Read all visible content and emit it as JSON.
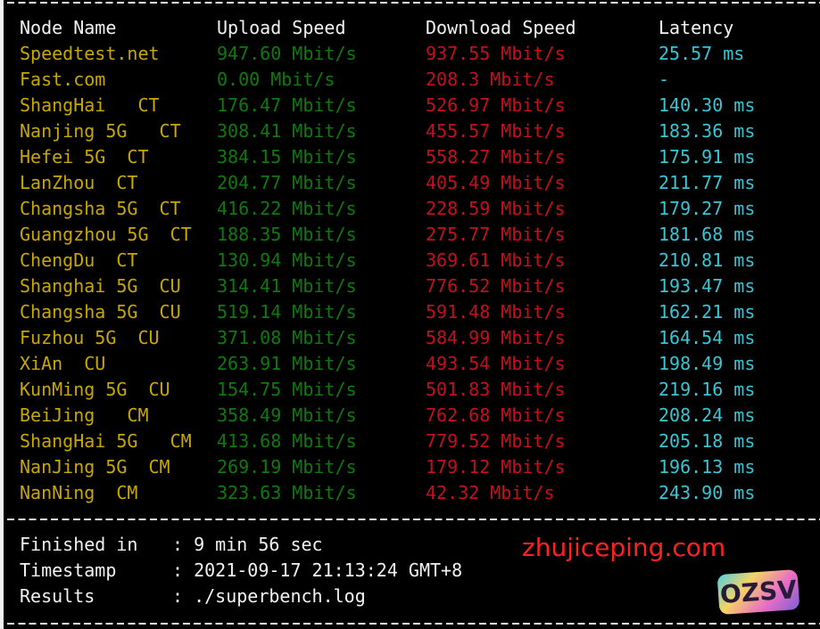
{
  "headers": {
    "node": "Node Name",
    "upload": "Upload Speed",
    "download": "Download Speed",
    "latency": "Latency"
  },
  "rows": [
    {
      "node": "Speedtest.net",
      "upload": "947.60 Mbit/s",
      "download": "937.55 Mbit/s",
      "latency": "25.57 ms"
    },
    {
      "node": "Fast.com",
      "upload": "0.00 Mbit/s",
      "download": "208.3 Mbit/s",
      "latency": "-"
    },
    {
      "node": "ShangHai   CT",
      "upload": "176.47 Mbit/s",
      "download": "526.97 Mbit/s",
      "latency": "140.30 ms"
    },
    {
      "node": "Nanjing 5G   CT",
      "upload": "308.41 Mbit/s",
      "download": "455.57 Mbit/s",
      "latency": "183.36 ms"
    },
    {
      "node": "Hefei 5G  CT",
      "upload": "384.15 Mbit/s",
      "download": "558.27 Mbit/s",
      "latency": "175.91 ms"
    },
    {
      "node": "LanZhou  CT",
      "upload": "204.77 Mbit/s",
      "download": "405.49 Mbit/s",
      "latency": "211.77 ms"
    },
    {
      "node": "Changsha 5G  CT",
      "upload": "416.22 Mbit/s",
      "download": "228.59 Mbit/s",
      "latency": "179.27 ms"
    },
    {
      "node": "Guangzhou 5G  CT",
      "upload": "188.35 Mbit/s",
      "download": "275.77 Mbit/s",
      "latency": "181.68 ms"
    },
    {
      "node": "ChengDu  CT",
      "upload": "130.94 Mbit/s",
      "download": "369.61 Mbit/s",
      "latency": "210.81 ms"
    },
    {
      "node": "Shanghai 5G  CU",
      "upload": "314.41 Mbit/s",
      "download": "776.52 Mbit/s",
      "latency": "193.47 ms"
    },
    {
      "node": "Changsha 5G  CU",
      "upload": "519.14 Mbit/s",
      "download": "591.48 Mbit/s",
      "latency": "162.21 ms"
    },
    {
      "node": "Fuzhou 5G  CU",
      "upload": "371.08 Mbit/s",
      "download": "584.99 Mbit/s",
      "latency": "164.54 ms"
    },
    {
      "node": "XiAn  CU",
      "upload": "263.91 Mbit/s",
      "download": "493.54 Mbit/s",
      "latency": "198.49 ms"
    },
    {
      "node": "KunMing 5G  CU",
      "upload": "154.75 Mbit/s",
      "download": "501.83 Mbit/s",
      "latency": "219.16 ms"
    },
    {
      "node": "BeiJing   CM",
      "upload": "358.49 Mbit/s",
      "download": "762.68 Mbit/s",
      "latency": "208.24 ms"
    },
    {
      "node": "ShangHai 5G   CM",
      "upload": "413.68 Mbit/s",
      "download": "779.52 Mbit/s",
      "latency": "205.18 ms"
    },
    {
      "node": "NanJing 5G  CM",
      "upload": "269.19 Mbit/s",
      "download": "179.12 Mbit/s",
      "latency": "196.13 ms"
    },
    {
      "node": "NanNing  CM",
      "upload": "323.63 Mbit/s",
      "download": "42.32 Mbit/s",
      "latency": "243.90 ms"
    }
  ],
  "footer": [
    {
      "label": "Finished in",
      "value": ": 9 min 56 sec"
    },
    {
      "label": "Timestamp",
      "value": ": 2021-09-17 21:13:24 GMT+8"
    },
    {
      "label": "Results",
      "value": ": ./superbench.log"
    }
  ],
  "watermark": "zhujiceping.com",
  "logo": "OZSV",
  "colors": {
    "node": "#c8a800",
    "upload": "#0e7a0e",
    "download": "#c50f1f",
    "latency": "#3ac4d4",
    "text": "#f2f2f2"
  }
}
